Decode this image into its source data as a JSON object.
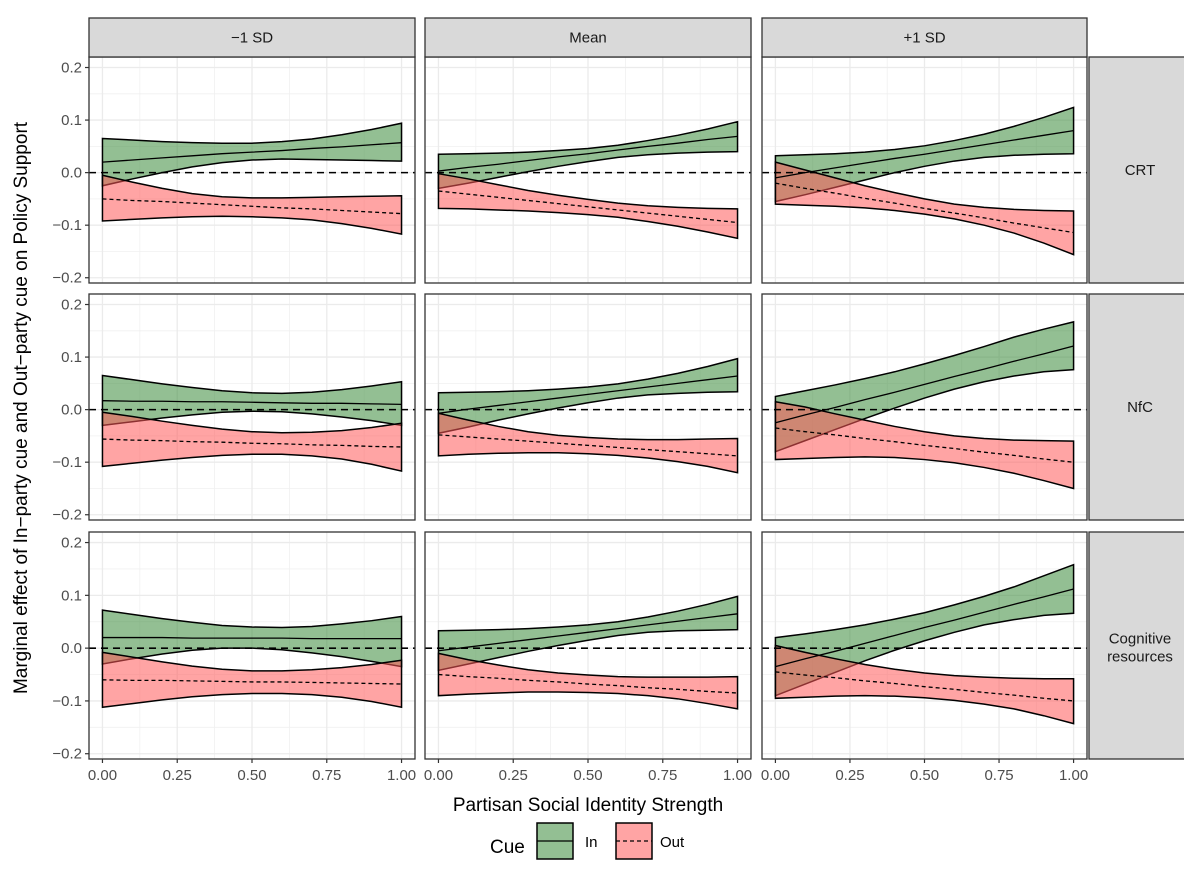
{
  "chart_data": {
    "type": "area",
    "title": "",
    "xlabel": "Partisan Social Identity Strength",
    "ylabel": "Marginal effect of In−party cue and Out−party cue on Policy Support",
    "xlim": [
      0,
      1
    ],
    "ylim": [
      -0.21,
      0.22
    ],
    "x_ticks": [
      0,
      0.25,
      0.5,
      0.75,
      1
    ],
    "x_tick_labels": [
      "0.00",
      "0.25",
      "0.50",
      "0.75",
      "1.00"
    ],
    "y_ticks": [
      -0.2,
      -0.1,
      0.0,
      0.1,
      0.2
    ],
    "y_tick_labels": [
      "−0.2",
      "−0.1",
      "0.0",
      "0.1",
      "0.2"
    ],
    "grid": true,
    "reference_line_y": 0,
    "columns": [
      "−1 SD",
      "Mean",
      "+1 SD"
    ],
    "rows": [
      "CRT",
      "NfC",
      "Cognitive resources"
    ],
    "legend": {
      "title": "Cue",
      "position": "bottom",
      "entries": [
        {
          "label": "In",
          "fill": "#3a8a3a",
          "linetype": "solid"
        },
        {
          "label": "Out",
          "fill": "#ff5a5a",
          "linetype": "dashed"
        }
      ]
    },
    "x": [
      0,
      0.1,
      0.2,
      0.3,
      0.4,
      0.5,
      0.6,
      0.7,
      0.8,
      0.9,
      1.0
    ],
    "panels": [
      {
        "row": "CRT",
        "col": "−1 SD",
        "in": {
          "estimate": [
            0.02,
            0.024,
            0.028,
            0.032,
            0.036,
            0.039,
            0.042,
            0.046,
            0.049,
            0.053,
            0.057
          ],
          "lower": [
            -0.025,
            -0.012,
            0.0,
            0.011,
            0.019,
            0.024,
            0.026,
            0.025,
            0.024,
            0.023,
            0.022
          ],
          "upper": [
            0.065,
            0.062,
            0.059,
            0.057,
            0.056,
            0.056,
            0.059,
            0.064,
            0.072,
            0.082,
            0.094
          ]
        },
        "out": {
          "estimate": [
            -0.05,
            -0.053,
            -0.055,
            -0.058,
            -0.061,
            -0.064,
            -0.067,
            -0.069,
            -0.072,
            -0.075,
            -0.078
          ],
          "lower": [
            -0.092,
            -0.089,
            -0.086,
            -0.084,
            -0.083,
            -0.084,
            -0.086,
            -0.09,
            -0.097,
            -0.106,
            -0.117
          ],
          "upper": [
            -0.005,
            -0.018,
            -0.03,
            -0.04,
            -0.046,
            -0.048,
            -0.048,
            -0.047,
            -0.046,
            -0.045,
            -0.044
          ]
        }
      },
      {
        "row": "CRT",
        "col": "Mean",
        "in": {
          "estimate": [
            0.003,
            0.01,
            0.016,
            0.023,
            0.03,
            0.036,
            0.043,
            0.05,
            0.056,
            0.063,
            0.069
          ],
          "lower": [
            -0.03,
            -0.02,
            -0.009,
            0.002,
            0.012,
            0.021,
            0.029,
            0.034,
            0.037,
            0.039,
            0.04
          ],
          "upper": [
            0.035,
            0.036,
            0.037,
            0.039,
            0.042,
            0.046,
            0.052,
            0.061,
            0.071,
            0.083,
            0.097
          ]
        },
        "out": {
          "estimate": [
            -0.035,
            -0.041,
            -0.047,
            -0.053,
            -0.059,
            -0.065,
            -0.071,
            -0.077,
            -0.083,
            -0.089,
            -0.095
          ],
          "lower": [
            -0.068,
            -0.069,
            -0.071,
            -0.073,
            -0.076,
            -0.08,
            -0.085,
            -0.093,
            -0.102,
            -0.113,
            -0.125
          ],
          "upper": [
            -0.002,
            -0.012,
            -0.023,
            -0.034,
            -0.043,
            -0.051,
            -0.058,
            -0.063,
            -0.066,
            -0.068,
            -0.069
          ]
        }
      },
      {
        "row": "CRT",
        "col": "+1 SD",
        "in": {
          "estimate": [
            -0.01,
            0.0,
            0.009,
            0.018,
            0.027,
            0.035,
            0.044,
            0.053,
            0.062,
            0.071,
            0.08
          ],
          "lower": [
            -0.055,
            -0.042,
            -0.028,
            -0.014,
            0.0,
            0.012,
            0.022,
            0.029,
            0.033,
            0.035,
            0.036
          ],
          "upper": [
            0.032,
            0.034,
            0.036,
            0.039,
            0.044,
            0.051,
            0.061,
            0.073,
            0.088,
            0.105,
            0.124
          ]
        },
        "out": {
          "estimate": [
            -0.02,
            -0.03,
            -0.039,
            -0.049,
            -0.058,
            -0.068,
            -0.077,
            -0.086,
            -0.096,
            -0.105,
            -0.114
          ],
          "lower": [
            -0.06,
            -0.062,
            -0.064,
            -0.067,
            -0.072,
            -0.079,
            -0.088,
            -0.1,
            -0.115,
            -0.134,
            -0.156
          ],
          "upper": [
            0.02,
            0.005,
            -0.01,
            -0.025,
            -0.038,
            -0.05,
            -0.06,
            -0.066,
            -0.07,
            -0.072,
            -0.073
          ]
        }
      },
      {
        "row": "NfC",
        "col": "−1 SD",
        "in": {
          "estimate": [
            0.017,
            0.016,
            0.016,
            0.015,
            0.015,
            0.014,
            0.013,
            0.012,
            0.012,
            0.011,
            0.01
          ],
          "lower": [
            -0.03,
            -0.023,
            -0.016,
            -0.01,
            -0.005,
            -0.003,
            -0.004,
            -0.008,
            -0.014,
            -0.021,
            -0.03
          ],
          "upper": [
            0.065,
            0.057,
            0.049,
            0.042,
            0.036,
            0.032,
            0.031,
            0.033,
            0.038,
            0.045,
            0.053
          ]
        },
        "out": {
          "estimate": [
            -0.056,
            -0.058,
            -0.059,
            -0.061,
            -0.062,
            -0.064,
            -0.065,
            -0.067,
            -0.068,
            -0.07,
            -0.071
          ],
          "lower": [
            -0.108,
            -0.102,
            -0.096,
            -0.091,
            -0.087,
            -0.085,
            -0.085,
            -0.088,
            -0.094,
            -0.104,
            -0.117
          ],
          "upper": [
            -0.005,
            -0.013,
            -0.022,
            -0.03,
            -0.037,
            -0.042,
            -0.044,
            -0.043,
            -0.04,
            -0.034,
            -0.026
          ]
        }
      },
      {
        "row": "NfC",
        "col": "Mean",
        "in": {
          "estimate": [
            -0.007,
            0.001,
            0.008,
            0.015,
            0.022,
            0.029,
            0.036,
            0.043,
            0.05,
            0.057,
            0.064
          ],
          "lower": [
            -0.045,
            -0.033,
            -0.02,
            -0.008,
            0.003,
            0.013,
            0.022,
            0.028,
            0.031,
            0.033,
            0.034
          ],
          "upper": [
            0.032,
            0.033,
            0.034,
            0.036,
            0.039,
            0.043,
            0.049,
            0.058,
            0.069,
            0.082,
            0.097
          ]
        },
        "out": {
          "estimate": [
            -0.048,
            -0.052,
            -0.056,
            -0.06,
            -0.064,
            -0.068,
            -0.072,
            -0.076,
            -0.08,
            -0.084,
            -0.088
          ],
          "lower": [
            -0.088,
            -0.085,
            -0.083,
            -0.082,
            -0.082,
            -0.084,
            -0.087,
            -0.092,
            -0.099,
            -0.108,
            -0.12
          ],
          "upper": [
            -0.007,
            -0.02,
            -0.032,
            -0.042,
            -0.049,
            -0.053,
            -0.056,
            -0.057,
            -0.057,
            -0.056,
            -0.055
          ]
        }
      },
      {
        "row": "NfC",
        "col": "+1 SD",
        "in": {
          "estimate": [
            -0.025,
            -0.01,
            0.004,
            0.019,
            0.033,
            0.048,
            0.063,
            0.077,
            0.092,
            0.106,
            0.121
          ],
          "lower": [
            -0.08,
            -0.059,
            -0.038,
            -0.017,
            0.003,
            0.022,
            0.039,
            0.053,
            0.064,
            0.072,
            0.076
          ],
          "upper": [
            0.025,
            0.036,
            0.047,
            0.059,
            0.072,
            0.087,
            0.103,
            0.12,
            0.138,
            0.153,
            0.167
          ]
        },
        "out": {
          "estimate": [
            -0.035,
            -0.042,
            -0.048,
            -0.055,
            -0.061,
            -0.068,
            -0.074,
            -0.081,
            -0.087,
            -0.094,
            -0.1
          ],
          "lower": [
            -0.095,
            -0.093,
            -0.091,
            -0.09,
            -0.091,
            -0.095,
            -0.101,
            -0.11,
            -0.121,
            -0.135,
            -0.15
          ],
          "upper": [
            0.015,
            0.005,
            -0.008,
            -0.02,
            -0.032,
            -0.042,
            -0.05,
            -0.055,
            -0.058,
            -0.059,
            -0.06
          ]
        }
      },
      {
        "row": "Cognitive resources",
        "col": "−1 SD",
        "in": {
          "estimate": [
            0.02,
            0.02,
            0.02,
            0.019,
            0.019,
            0.019,
            0.019,
            0.018,
            0.018,
            0.018,
            0.018
          ],
          "lower": [
            -0.03,
            -0.02,
            -0.011,
            -0.004,
            0.0,
            0.0,
            -0.003,
            -0.009,
            -0.016,
            -0.025,
            -0.035
          ],
          "upper": [
            0.072,
            0.064,
            0.056,
            0.049,
            0.043,
            0.04,
            0.039,
            0.041,
            0.046,
            0.052,
            0.06
          ]
        },
        "out": {
          "estimate": [
            -0.06,
            -0.061,
            -0.061,
            -0.062,
            -0.063,
            -0.064,
            -0.064,
            -0.065,
            -0.066,
            -0.067,
            -0.068
          ],
          "lower": [
            -0.112,
            -0.105,
            -0.098,
            -0.092,
            -0.088,
            -0.086,
            -0.086,
            -0.088,
            -0.093,
            -0.101,
            -0.112
          ],
          "upper": [
            -0.008,
            -0.017,
            -0.026,
            -0.034,
            -0.04,
            -0.043,
            -0.043,
            -0.041,
            -0.037,
            -0.031,
            -0.023
          ]
        }
      },
      {
        "row": "Cognitive resources",
        "col": "Mean",
        "in": {
          "estimate": [
            -0.005,
            0.002,
            0.009,
            0.016,
            0.023,
            0.03,
            0.037,
            0.044,
            0.051,
            0.058,
            0.065
          ],
          "lower": [
            -0.042,
            -0.03,
            -0.018,
            -0.006,
            0.005,
            0.015,
            0.024,
            0.03,
            0.033,
            0.034,
            0.035
          ],
          "upper": [
            0.033,
            0.034,
            0.035,
            0.037,
            0.04,
            0.044,
            0.05,
            0.059,
            0.07,
            0.083,
            0.098
          ]
        },
        "out": {
          "estimate": [
            -0.05,
            -0.054,
            -0.057,
            -0.061,
            -0.064,
            -0.068,
            -0.071,
            -0.075,
            -0.078,
            -0.082,
            -0.085
          ],
          "lower": [
            -0.09,
            -0.087,
            -0.085,
            -0.083,
            -0.083,
            -0.084,
            -0.086,
            -0.09,
            -0.096,
            -0.105,
            -0.115
          ],
          "upper": [
            -0.01,
            -0.022,
            -0.032,
            -0.041,
            -0.047,
            -0.051,
            -0.054,
            -0.055,
            -0.055,
            -0.055,
            -0.054
          ]
        }
      },
      {
        "row": "Cognitive resources",
        "col": "+1 SD",
        "in": {
          "estimate": [
            -0.035,
            -0.02,
            -0.006,
            0.009,
            0.024,
            0.039,
            0.053,
            0.068,
            0.083,
            0.097,
            0.112
          ],
          "lower": [
            -0.09,
            -0.068,
            -0.046,
            -0.024,
            -0.004,
            0.014,
            0.03,
            0.044,
            0.054,
            0.062,
            0.066
          ],
          "upper": [
            0.02,
            0.027,
            0.035,
            0.044,
            0.055,
            0.067,
            0.082,
            0.098,
            0.116,
            0.137,
            0.158
          ]
        },
        "out": {
          "estimate": [
            -0.045,
            -0.051,
            -0.056,
            -0.062,
            -0.067,
            -0.073,
            -0.078,
            -0.084,
            -0.089,
            -0.095,
            -0.1
          ],
          "lower": [
            -0.095,
            -0.093,
            -0.091,
            -0.09,
            -0.091,
            -0.094,
            -0.099,
            -0.106,
            -0.115,
            -0.128,
            -0.143
          ],
          "upper": [
            0.005,
            -0.008,
            -0.02,
            -0.031,
            -0.04,
            -0.047,
            -0.052,
            -0.055,
            -0.057,
            -0.058,
            -0.058
          ]
        }
      }
    ]
  }
}
